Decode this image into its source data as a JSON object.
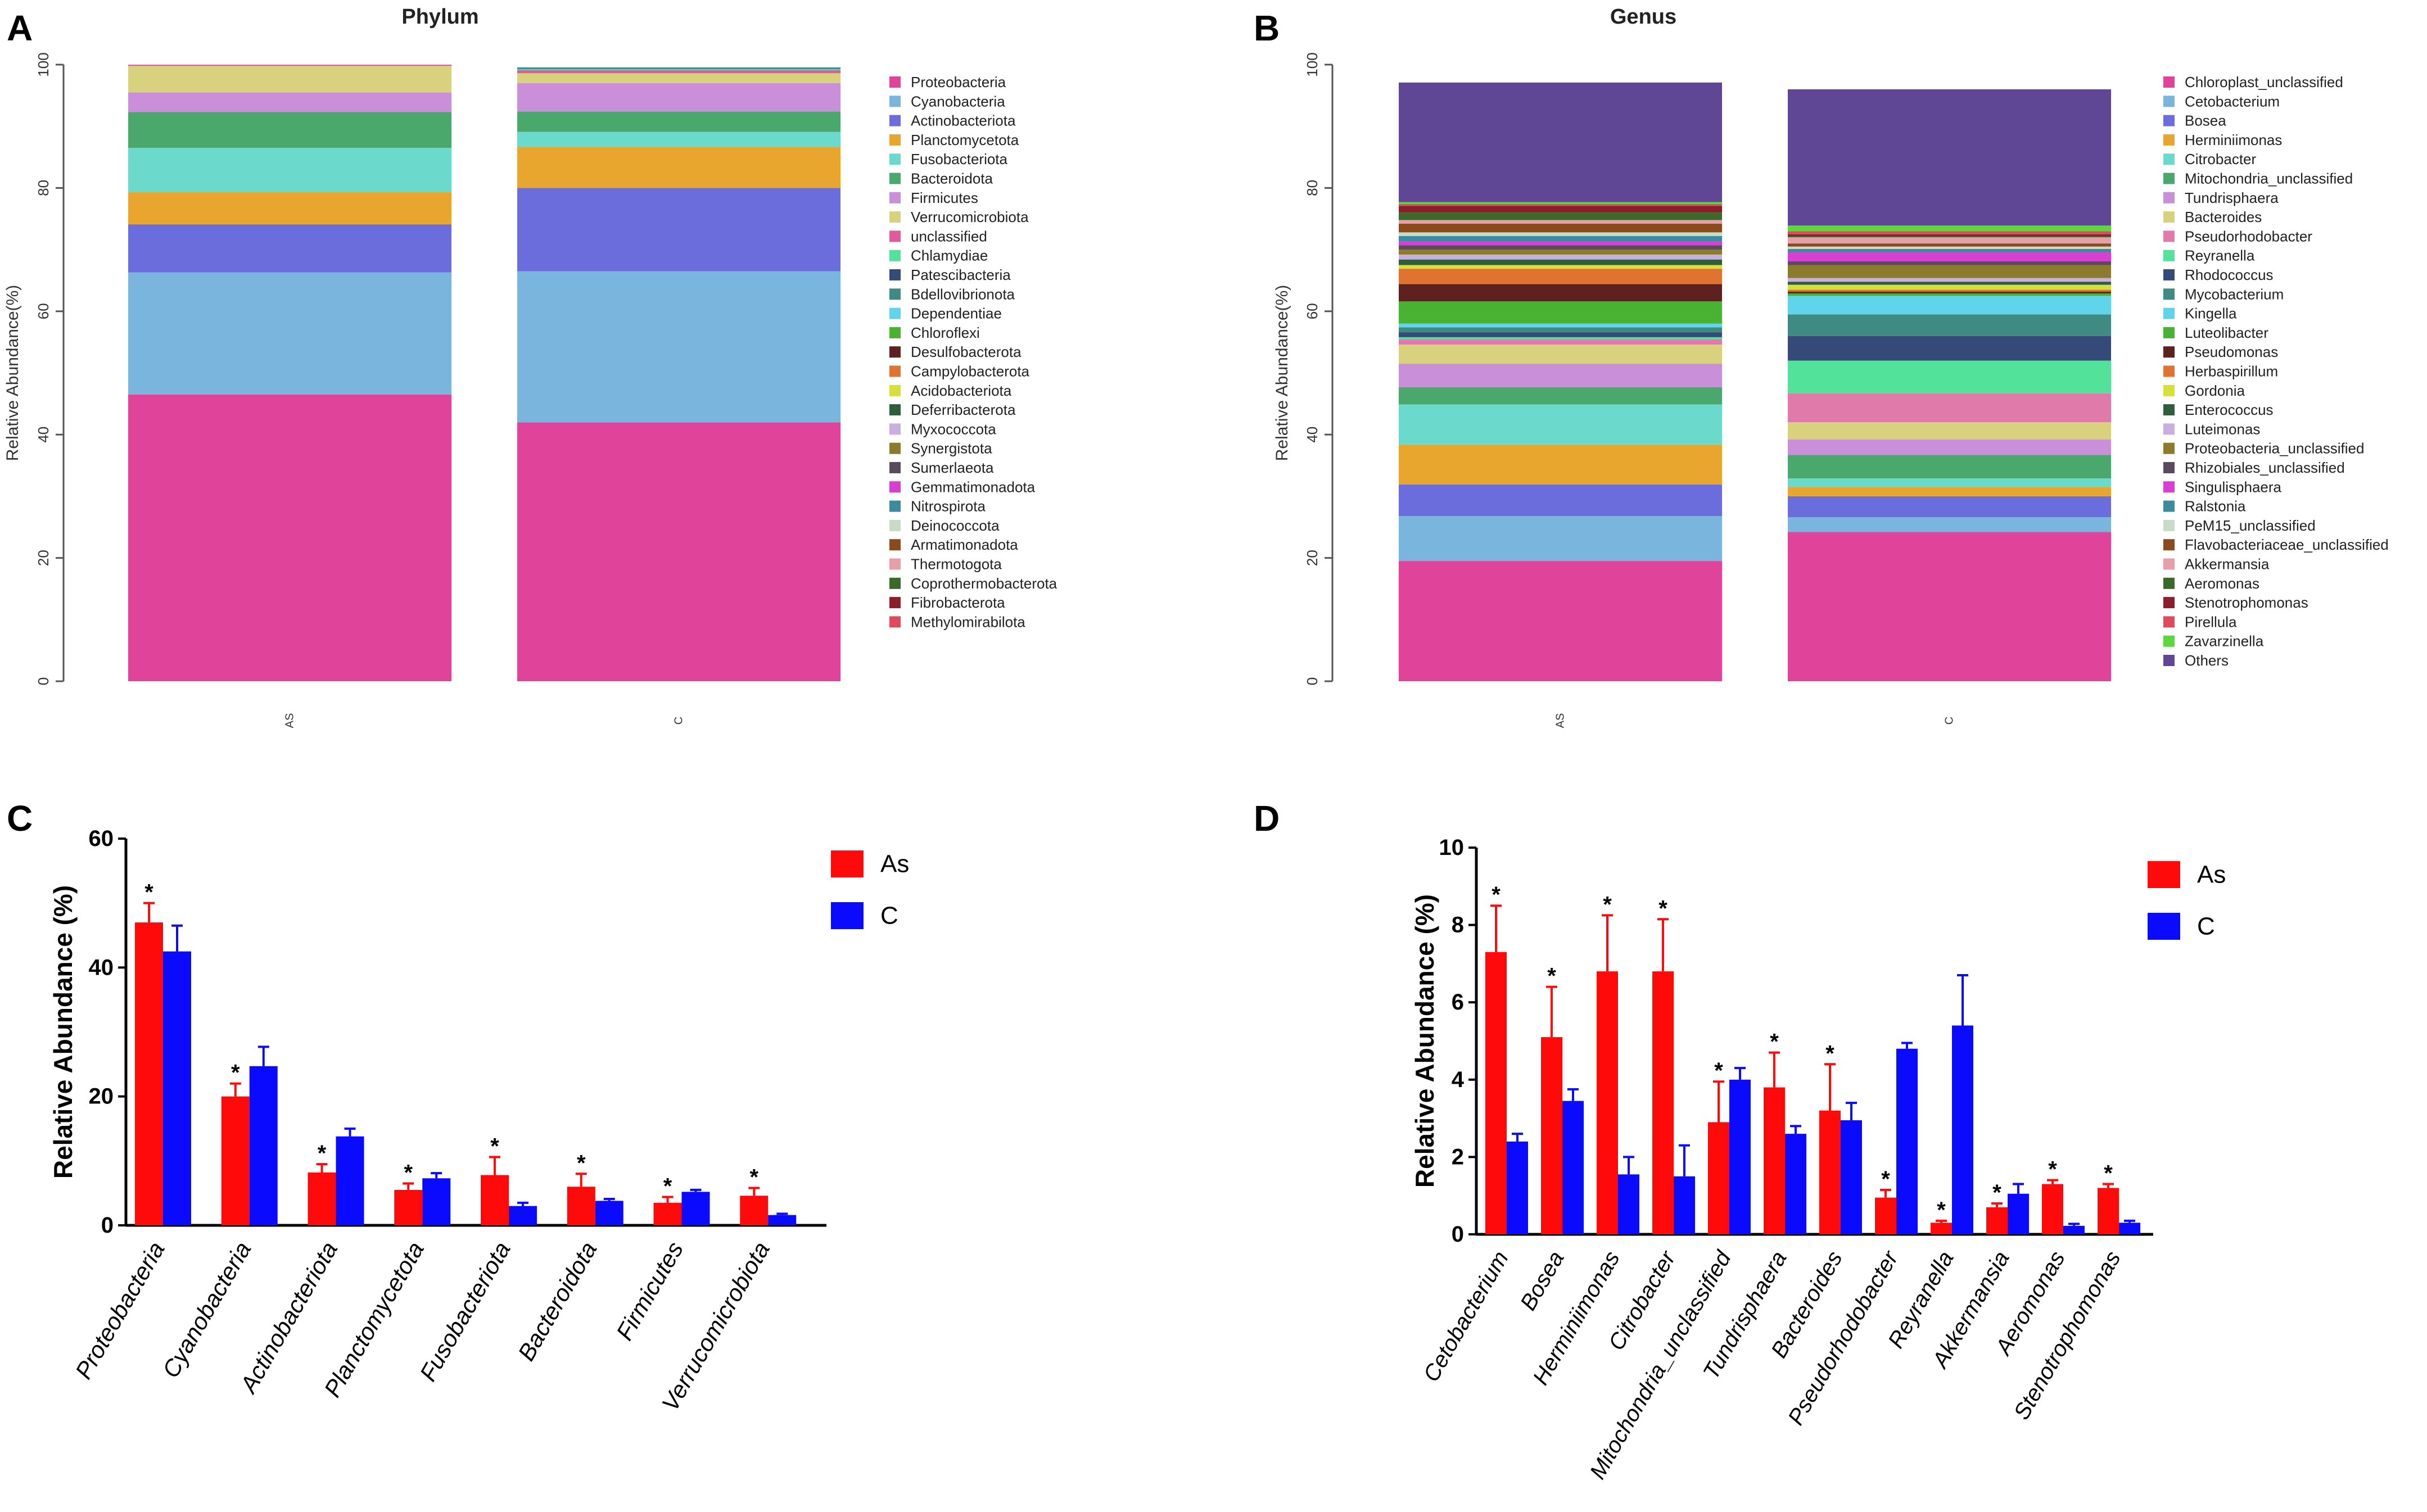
{
  "chart_data": [
    {
      "panel": "A",
      "type": "bar",
      "stacked": true,
      "title": "Phylum",
      "ylabel": "Relative Abundance(%)",
      "xlabel": "",
      "ylim": [
        0,
        100
      ],
      "yticks": [
        "0",
        "20",
        "40",
        "60",
        "80",
        "100"
      ],
      "categories": [
        "AS",
        "C"
      ],
      "series": [
        {
          "name": "Proteobacteria",
          "color": "#e0449a",
          "values": [
            46.5,
            42.0
          ]
        },
        {
          "name": "Cyanobacteria",
          "color": "#7ab5dd",
          "values": [
            19.8,
            24.5
          ]
        },
        {
          "name": "Actinobacteriota",
          "color": "#6b6ddc",
          "values": [
            7.8,
            13.5
          ]
        },
        {
          "name": "Planctomycetota",
          "color": "#e8a62e",
          "values": [
            5.2,
            6.6
          ]
        },
        {
          "name": "Fusobacteriota",
          "color": "#6cd9cd",
          "values": [
            7.2,
            2.5
          ]
        },
        {
          "name": "Bacteroidota",
          "color": "#4aa86c",
          "values": [
            5.8,
            3.3
          ]
        },
        {
          "name": "Firmicutes",
          "color": "#c98fd9",
          "values": [
            3.2,
            4.6
          ]
        },
        {
          "name": "Verrucomicrobiota",
          "color": "#d8d27e",
          "values": [
            4.3,
            1.6
          ]
        },
        {
          "name": "unclassified",
          "color": "#e05b9c",
          "values": [
            0.2,
            0.5
          ]
        },
        {
          "name": "Chlamydiae",
          "color": "#52e29a",
          "values": [
            0.0,
            0.2
          ]
        },
        {
          "name": "Patescibacteria",
          "color": "#354a78",
          "values": [
            0.0,
            0.1
          ]
        },
        {
          "name": "Bdellovibrionota",
          "color": "#3f8a82",
          "values": [
            0.0,
            0.1
          ]
        },
        {
          "name": "Dependentiae",
          "color": "#5fd4ea",
          "values": [
            0.0,
            0.1
          ]
        },
        {
          "name": "Chloroflexi",
          "color": "#4ab233",
          "values": [
            0.0,
            0.0
          ]
        },
        {
          "name": "Desulfobacterota",
          "color": "#5e2120",
          "values": [
            0.0,
            0.0
          ]
        },
        {
          "name": "Campylobacterota",
          "color": "#e07330",
          "values": [
            0.0,
            0.0
          ]
        },
        {
          "name": "Acidobacteriota",
          "color": "#d5e03a",
          "values": [
            0.0,
            0.0
          ]
        },
        {
          "name": "Deferribacterota",
          "color": "#2e5e3c",
          "values": [
            0.0,
            0.0
          ]
        },
        {
          "name": "Myxococcota",
          "color": "#c9aee0",
          "values": [
            0.0,
            0.0
          ]
        },
        {
          "name": "Synergistota",
          "color": "#8c7a2d",
          "values": [
            0.0,
            0.0
          ]
        },
        {
          "name": "Sumerlaeota",
          "color": "#5a4a5e",
          "values": [
            0.0,
            0.0
          ]
        },
        {
          "name": "Gemmatimonadota",
          "color": "#d63fd1",
          "values": [
            0.0,
            0.0
          ]
        },
        {
          "name": "Nitrospirota",
          "color": "#3b8a9e",
          "values": [
            0.0,
            0.0
          ]
        },
        {
          "name": "Deinococcota",
          "color": "#c6dcc6",
          "values": [
            0.0,
            0.0
          ]
        },
        {
          "name": "Armatimonadota",
          "color": "#8a4a1e",
          "values": [
            0.0,
            0.0
          ]
        },
        {
          "name": "Thermotogota",
          "color": "#e8a0a8",
          "values": [
            0.0,
            0.0
          ]
        },
        {
          "name": "Coprothermobacterota",
          "color": "#3a6a2a",
          "values": [
            0.0,
            0.0
          ]
        },
        {
          "name": "Fibrobacterota",
          "color": "#8a1e2a",
          "values": [
            0.0,
            0.0
          ]
        },
        {
          "name": "Methylomirabilota",
          "color": "#e04a5a",
          "values": [
            0.0,
            0.0
          ]
        }
      ]
    },
    {
      "panel": "B",
      "type": "bar",
      "stacked": true,
      "title": "Genus",
      "ylabel": "Relative Abundance(%)",
      "xlabel": "",
      "ylim": [
        0,
        100
      ],
      "yticks": [
        "0",
        "20",
        "40",
        "60",
        "80",
        "100"
      ],
      "categories": [
        "AS",
        "C"
      ],
      "series": [
        {
          "name": "Chloroplast_unclassified",
          "color": "#e0449a",
          "values": [
            19.5,
            24.2
          ]
        },
        {
          "name": "Cetobacterium",
          "color": "#7ab5dd",
          "values": [
            7.3,
            2.4
          ]
        },
        {
          "name": "Bosea",
          "color": "#6b6ddc",
          "values": [
            5.1,
            3.4
          ]
        },
        {
          "name": "Herminiimonas",
          "color": "#e8a62e",
          "values": [
            6.5,
            1.5
          ]
        },
        {
          "name": "Citrobacter",
          "color": "#6cd9cd",
          "values": [
            6.5,
            1.4
          ]
        },
        {
          "name": "Mitochondria_unclassified",
          "color": "#4aa86c",
          "values": [
            2.8,
            3.8
          ]
        },
        {
          "name": "Tundrisphaera",
          "color": "#c98fd9",
          "values": [
            3.8,
            2.5
          ]
        },
        {
          "name": "Bacteroides",
          "color": "#d8d27e",
          "values": [
            3.1,
            2.8
          ]
        },
        {
          "name": "Pseudorhodobacter",
          "color": "#e07aaa",
          "values": [
            0.9,
            4.7
          ]
        },
        {
          "name": "Reyranella",
          "color": "#52e29a",
          "values": [
            0.3,
            5.3
          ]
        },
        {
          "name": "Rhodococcus",
          "color": "#354a78",
          "values": [
            0.8,
            4.0
          ]
        },
        {
          "name": "Mycobacterium",
          "color": "#3f8a82",
          "values": [
            0.8,
            3.5
          ]
        },
        {
          "name": "Kingella",
          "color": "#5fd4ea",
          "values": [
            0.6,
            3.0
          ]
        },
        {
          "name": "Luteolibacter",
          "color": "#4ab233",
          "values": [
            3.6,
            0.4
          ]
        },
        {
          "name": "Pseudomonas",
          "color": "#5e2120",
          "values": [
            2.8,
            0.3
          ]
        },
        {
          "name": "Herbaspirillum",
          "color": "#e07330",
          "values": [
            2.5,
            0.3
          ]
        },
        {
          "name": "Gordonia",
          "color": "#d5e03a",
          "values": [
            0.6,
            0.8
          ]
        },
        {
          "name": "Enterococcus",
          "color": "#2e5e3c",
          "values": [
            0.9,
            0.5
          ]
        },
        {
          "name": "Luteimonas",
          "color": "#c9aee0",
          "values": [
            0.8,
            0.6
          ]
        },
        {
          "name": "Proteobacteria_unclassified",
          "color": "#8c7a2d",
          "values": [
            0.8,
            2.1
          ]
        },
        {
          "name": "Rhizobiales_unclassified",
          "color": "#5a4a5e",
          "values": [
            0.7,
            0.6
          ]
        },
        {
          "name": "Singulisphaera",
          "color": "#d63fd1",
          "values": [
            0.6,
            1.5
          ]
        },
        {
          "name": "Ralstonia",
          "color": "#3b8a9e",
          "values": [
            0.9,
            0.5
          ]
        },
        {
          "name": "PeM15_unclassified",
          "color": "#c6dcc6",
          "values": [
            0.6,
            0.4
          ]
        },
        {
          "name": "Flavobacteriaceae_unclassified",
          "color": "#8a4a1e",
          "values": [
            1.4,
            0.5
          ]
        },
        {
          "name": "Akkermansia",
          "color": "#e8a0a8",
          "values": [
            0.6,
            1.0
          ]
        },
        {
          "name": "Aeromonas",
          "color": "#3a6a2a",
          "values": [
            1.2,
            0.2
          ]
        },
        {
          "name": "Stenotrophomonas",
          "color": "#8a1e2a",
          "values": [
            1.1,
            0.3
          ]
        },
        {
          "name": "Pirellula",
          "color": "#e04a5a",
          "values": [
            0.3,
            0.5
          ]
        },
        {
          "name": "Zavarzinella",
          "color": "#5cd93a",
          "values": [
            0.3,
            0.9
          ]
        },
        {
          "name": "Others",
          "color": "#5f4795",
          "values": [
            19.4,
            22.1
          ]
        }
      ]
    },
    {
      "panel": "C",
      "type": "bar",
      "title": "",
      "ylabel": "Relative Abundance (%)",
      "xlabel": "",
      "ylim": [
        0,
        60
      ],
      "yticks": [
        "0",
        "20",
        "40",
        "60"
      ],
      "categories": [
        "Proteobacteria",
        "Cyanobacteria",
        "Actinobacteriota",
        "Planctomycetota",
        "Fusobacteriota",
        "Bacteroidota",
        "Firmicutes",
        "Verrucomicrobiota"
      ],
      "series": [
        {
          "name": "As",
          "color": "#ff0a0a",
          "values": [
            47.0,
            20.0,
            8.2,
            5.5,
            7.8,
            6.0,
            3.5,
            4.6
          ],
          "errors": [
            3.0,
            2.0,
            1.3,
            1.0,
            2.8,
            2.0,
            0.9,
            1.2
          ],
          "significant": [
            "*",
            "*",
            "*",
            "*",
            "*",
            "*",
            "*",
            "*"
          ]
        },
        {
          "name": "C",
          "color": "#0a0aff",
          "values": [
            42.5,
            24.7,
            13.8,
            7.3,
            3.0,
            3.8,
            5.2,
            1.6
          ],
          "errors": [
            4.0,
            3.0,
            1.2,
            0.8,
            0.5,
            0.3,
            0.3,
            0.2
          ]
        }
      ]
    },
    {
      "panel": "D",
      "type": "bar",
      "title": "",
      "ylabel": "Relative Abundance (%)",
      "xlabel": "",
      "ylim": [
        0,
        10
      ],
      "yticks": [
        "0",
        "2",
        "4",
        "6",
        "8",
        "10"
      ],
      "categories": [
        "Cetobacterium",
        "Bosea",
        "Herminiimonas",
        "Citrobacter",
        "Mitochondria_unclassified",
        "Tundrisphaera",
        "Bacteroides",
        "Pseudorhodobacter",
        "Reyranella",
        "Akkermansia",
        "Aeromonas",
        "Stenotrophomonas"
      ],
      "series": [
        {
          "name": "As",
          "color": "#ff0a0a",
          "values": [
            7.3,
            5.1,
            6.8,
            6.8,
            2.9,
            3.8,
            3.2,
            0.95,
            0.3,
            0.7,
            1.3,
            1.2
          ],
          "errors": [
            1.2,
            1.3,
            1.45,
            1.35,
            1.05,
            0.9,
            1.2,
            0.2,
            0.05,
            0.1,
            0.1,
            0.1
          ],
          "significant": [
            "*",
            "*",
            "*",
            "*",
            "*",
            "*",
            "*",
            "*",
            "*",
            "*",
            "*",
            "*"
          ]
        },
        {
          "name": "C",
          "color": "#0a0aff",
          "values": [
            2.4,
            3.45,
            1.55,
            1.5,
            4.0,
            2.6,
            2.95,
            4.8,
            5.4,
            1.05,
            0.22,
            0.3
          ],
          "errors": [
            0.2,
            0.3,
            0.45,
            0.8,
            0.3,
            0.2,
            0.45,
            0.15,
            1.3,
            0.25,
            0.05,
            0.05
          ]
        }
      ]
    }
  ],
  "panel_labels": [
    "A",
    "B",
    "C",
    "D"
  ]
}
